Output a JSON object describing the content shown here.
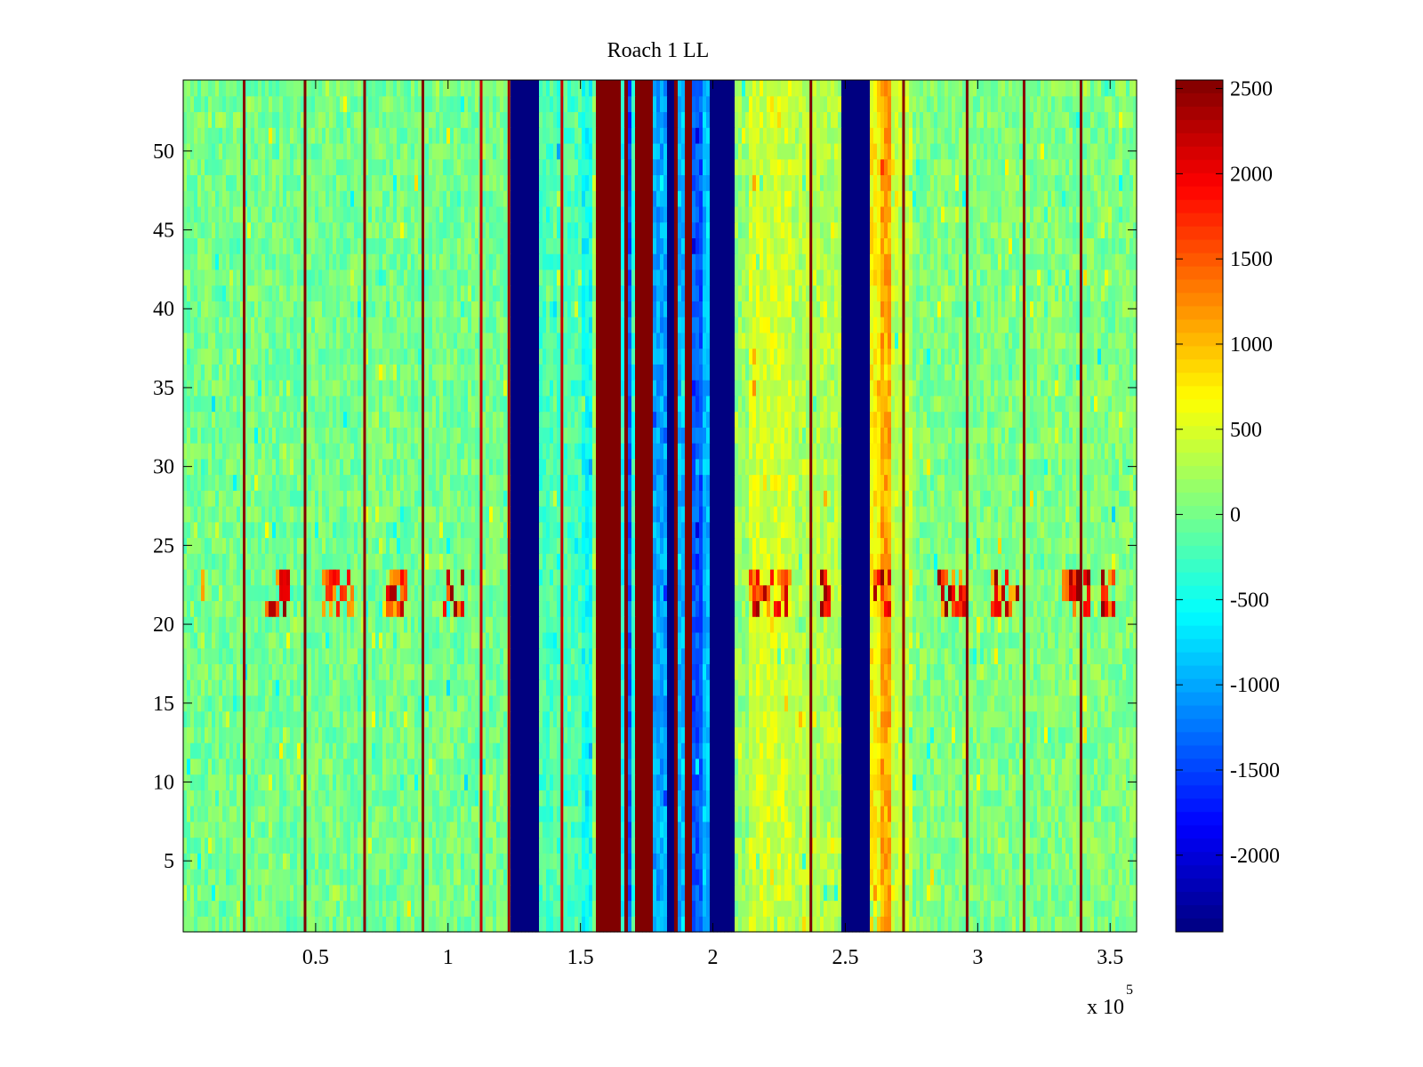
{
  "chart_data": {
    "type": "heatmap",
    "title": "Roach 1 LL",
    "xlabel": "",
    "ylabel": "",
    "x_multiplier_label": "x 10",
    "x_multiplier_exponent": "5",
    "xlim": [
      0,
      3.6
    ],
    "ylim": [
      0.5,
      54.5
    ],
    "x_units_scale": 100000,
    "rows": 54,
    "xticks": [
      {
        "value": 0.5,
        "label": "0.5"
      },
      {
        "value": 1,
        "label": "1"
      },
      {
        "value": 1.5,
        "label": "1.5"
      },
      {
        "value": 2,
        "label": "2"
      },
      {
        "value": 2.5,
        "label": "2.5"
      },
      {
        "value": 3,
        "label": "3"
      },
      {
        "value": 3.5,
        "label": "3.5"
      }
    ],
    "yticks": [
      {
        "value": 5,
        "label": "5"
      },
      {
        "value": 10,
        "label": "10"
      },
      {
        "value": 15,
        "label": "15"
      },
      {
        "value": 20,
        "label": "20"
      },
      {
        "value": 25,
        "label": "25"
      },
      {
        "value": 30,
        "label": "30"
      },
      {
        "value": 35,
        "label": "35"
      },
      {
        "value": 40,
        "label": "40"
      },
      {
        "value": 45,
        "label": "45"
      },
      {
        "value": 50,
        "label": "50"
      }
    ],
    "colorbar": {
      "colormap": "jet",
      "clim": [
        -2450,
        2550
      ],
      "ticks": [
        {
          "value": 2500,
          "label": "2500"
        },
        {
          "value": 2000,
          "label": "2000"
        },
        {
          "value": 1500,
          "label": "1500"
        },
        {
          "value": 1000,
          "label": "1000"
        },
        {
          "value": 500,
          "label": "500"
        },
        {
          "value": 0,
          "label": "0"
        },
        {
          "value": -500,
          "label": "-500"
        },
        {
          "value": -1000,
          "label": "-1000"
        },
        {
          "value": -1500,
          "label": "-1500"
        },
        {
          "value": -2000,
          "label": "-2000"
        }
      ]
    },
    "background_level": 0,
    "noise_amplitude": 250,
    "bands": [
      {
        "x0": 1.235,
        "x1": 1.345,
        "value": -2450,
        "label": "strong negative band"
      },
      {
        "x0": 1.345,
        "x1": 1.505,
        "value": -200
      },
      {
        "x0": 1.505,
        "x1": 1.54,
        "value": -500
      },
      {
        "x0": 1.54,
        "x1": 1.548,
        "value": 2300
      },
      {
        "x0": 1.548,
        "x1": 1.56,
        "value": 100
      },
      {
        "x0": 1.56,
        "x1": 1.655,
        "value": 2550
      },
      {
        "x0": 1.655,
        "x1": 1.668,
        "value": -500
      },
      {
        "x0": 1.668,
        "x1": 1.68,
        "value": 2550
      },
      {
        "x0": 1.68,
        "x1": 1.695,
        "value": -1400
      },
      {
        "x0": 1.695,
        "x1": 1.705,
        "value": -300
      },
      {
        "x0": 1.705,
        "x1": 1.77,
        "value": 2550
      },
      {
        "x0": 1.77,
        "x1": 1.83,
        "value": -1000
      },
      {
        "x0": 1.83,
        "x1": 1.855,
        "value": -2450
      },
      {
        "x0": 1.855,
        "x1": 1.87,
        "value": 2550
      },
      {
        "x0": 1.87,
        "x1": 1.89,
        "value": -900
      },
      {
        "x0": 1.89,
        "x1": 1.915,
        "value": 2550
      },
      {
        "x0": 1.915,
        "x1": 1.96,
        "value": -1400
      },
      {
        "x0": 1.96,
        "x1": 1.988,
        "value": -900
      },
      {
        "x0": 1.988,
        "x1": 2.088,
        "value": -2450
      },
      {
        "x0": 2.088,
        "x1": 2.13,
        "value": 150
      },
      {
        "x0": 2.13,
        "x1": 2.3,
        "value": 450
      },
      {
        "x0": 2.3,
        "x1": 2.48,
        "value": 300
      },
      {
        "x0": 2.48,
        "x1": 2.59,
        "value": -2450
      },
      {
        "x0": 2.59,
        "x1": 2.63,
        "value": 700
      },
      {
        "x0": 2.63,
        "x1": 2.67,
        "value": 1100
      },
      {
        "x0": 2.67,
        "x1": 2.75,
        "value": 350
      },
      {
        "x0": 2.75,
        "x1": 3.6,
        "value": 50
      }
    ],
    "stripes": [
      {
        "x": 0.23,
        "value": 2500
      },
      {
        "x": 0.46,
        "value": 2550
      },
      {
        "x": 0.685,
        "value": 2500
      },
      {
        "x": 0.905,
        "value": 2550
      },
      {
        "x": 1.125,
        "value": 2200
      },
      {
        "x": 1.23,
        "value": 2400
      },
      {
        "x": 1.43,
        "value": 2200
      },
      {
        "x": 2.37,
        "value": 2550
      },
      {
        "x": 2.72,
        "value": 2500
      },
      {
        "x": 2.96,
        "value": 2550
      },
      {
        "x": 3.175,
        "value": 2500
      },
      {
        "x": 3.39,
        "value": 2550
      }
    ],
    "hot_row_range": [
      20.5,
      23.5
    ],
    "hot_segments": [
      [
        0.06,
        0.11
      ],
      [
        0.31,
        0.4
      ],
      [
        0.52,
        0.65
      ],
      [
        0.76,
        0.85
      ],
      [
        0.98,
        1.06
      ],
      [
        2.13,
        2.28
      ],
      [
        2.41,
        2.45
      ],
      [
        2.6,
        2.67
      ],
      [
        2.85,
        2.95
      ],
      [
        3.05,
        3.17
      ],
      [
        3.32,
        3.42
      ],
      [
        3.47,
        3.52
      ]
    ]
  }
}
